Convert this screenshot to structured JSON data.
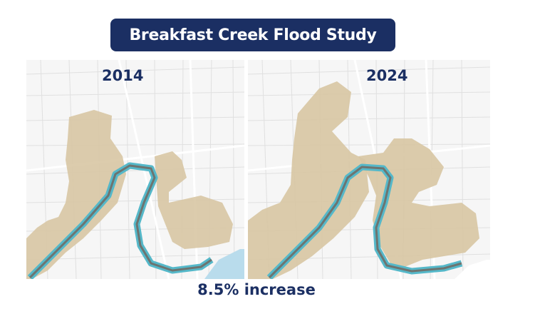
{
  "title": "Breakfast Creek Flood Study",
  "maps": [
    {
      "year": "2014"
    },
    {
      "year": "2024"
    }
  ],
  "caption": "8.5% increase",
  "colors": {
    "title_bg": "#1b2f63",
    "title_text": "#ffffff",
    "label_text": "#1b2f63",
    "flood_extent": "#d8c7a4",
    "creek": "#6d7470",
    "creek_outline": "#55b8c9",
    "water": "#b9dcec"
  }
}
